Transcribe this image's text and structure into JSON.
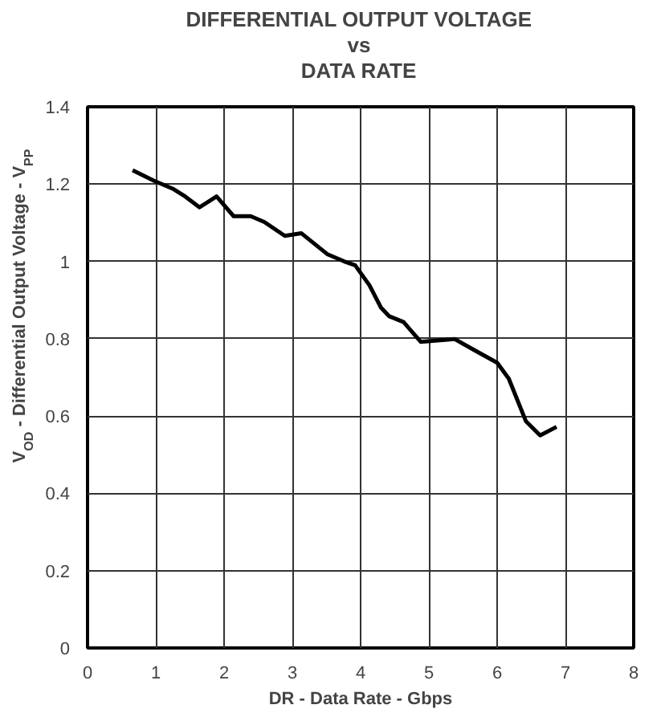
{
  "chart_data": {
    "type": "line",
    "title": "DIFFERENTIAL OUTPUT VOLTAGE\nvs\nDATA RATE",
    "xlabel": "DR - Data Rate - Gbps",
    "ylabel": "V$_{OD}$ - Differential Output Voltage - V$_{PP}$",
    "x": [
      0.66,
      0.97,
      1.26,
      1.43,
      1.64,
      1.89,
      2.14,
      2.39,
      2.59,
      2.89,
      3.13,
      3.51,
      3.76,
      3.92,
      4.13,
      4.3,
      4.42,
      4.63,
      4.88,
      5.38,
      5.67,
      6.0,
      6.17,
      6.42,
      6.63,
      6.87
    ],
    "series": [
      {
        "color": "#000000",
        "values": [
          1.236,
          1.209,
          1.187,
          1.168,
          1.14,
          1.168,
          1.117,
          1.117,
          1.102,
          1.066,
          1.073,
          1.019,
          1.0,
          0.99,
          0.938,
          0.88,
          0.858,
          0.843,
          0.792,
          0.799,
          0.77,
          0.738,
          0.697,
          0.587,
          0.55,
          0.572
        ]
      }
    ],
    "xlim": [
      0,
      8
    ],
    "xticks": [
      0,
      1,
      2,
      3,
      4,
      5,
      6,
      7,
      8
    ],
    "ylim": [
      0,
      1.4
    ],
    "yticks": [
      0,
      0.2,
      0.4,
      0.6,
      0.8,
      1,
      1.2,
      1.4
    ],
    "grid": true,
    "line_style": "solid",
    "marker": "none"
  }
}
